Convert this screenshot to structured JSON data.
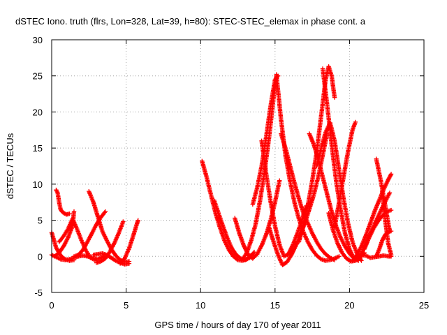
{
  "chart_data": {
    "type": "scatter",
    "title": "dSTEC Iono. truth (flrs, Lon=328, Lat=39, h=80): STEC-STEC_elemax in phase cont. a",
    "xlabel": "GPS time / hours of day 170 of year 2011",
    "ylabel": "dSTEC  / TECUs",
    "xlim": [
      0,
      25
    ],
    "ylim": [
      -5,
      30
    ],
    "xticks": [
      0,
      5,
      10,
      15,
      20,
      25
    ],
    "yticks": [
      -5,
      0,
      5,
      10,
      15,
      20,
      25,
      30
    ],
    "grid": true,
    "marker": "+",
    "color": "#ff0000",
    "series": [
      {
        "x": [
          0.0,
          0.3,
          0.6,
          0.9,
          1.2,
          1.5
        ],
        "y": [
          3.3,
          1.2,
          0.1,
          -0.4,
          -0.6,
          -0.5
        ]
      },
      {
        "x": [
          0.0,
          0.3,
          0.6,
          0.9,
          1.2,
          1.5,
          1.8,
          2.1,
          2.4,
          2.7,
          3.0
        ],
        "y": [
          0.2,
          -0.1,
          -0.4,
          -0.5,
          -0.4,
          -0.2,
          0.0,
          0.1,
          0.0,
          -0.2,
          -0.4
        ]
      },
      {
        "x": [
          0.3,
          0.4,
          0.5,
          0.6,
          0.7,
          0.8,
          1.0,
          1.2
        ],
        "y": [
          9.2,
          8.8,
          7.5,
          6.5,
          6.2,
          6.0,
          5.8,
          5.9
        ]
      },
      {
        "x": [
          0.5,
          0.8,
          1.1,
          1.4,
          1.7,
          2.0,
          2.3,
          2.6,
          2.9,
          3.2,
          3.5
        ],
        "y": [
          2.0,
          2.8,
          3.8,
          5.2,
          3.8,
          2.2,
          0.8,
          -0.2,
          -0.5,
          -0.3,
          0.0
        ]
      },
      {
        "x": [
          0.2,
          0.5,
          0.8,
          1.1,
          1.4,
          1.5
        ],
        "y": [
          0.0,
          0.5,
          1.4,
          2.6,
          4.2,
          6.2
        ]
      },
      {
        "x": [
          2.5,
          2.8,
          3.1,
          3.4,
          3.7,
          4.0,
          4.3,
          4.6,
          4.9,
          5.2
        ],
        "y": [
          9.0,
          7.5,
          5.5,
          3.5,
          2.2,
          1.0,
          0.1,
          -0.5,
          -0.8,
          -0.7
        ]
      },
      {
        "x": [
          1.5,
          1.8,
          2.1,
          2.4,
          2.7,
          3.0,
          3.3,
          3.6
        ],
        "y": [
          0.0,
          0.2,
          0.9,
          2.0,
          3.2,
          4.4,
          5.4,
          6.2
        ]
      },
      {
        "x": [
          2.8,
          3.1,
          3.4,
          3.7,
          4.0,
          4.3,
          4.6,
          4.9,
          5.2
        ],
        "y": [
          0.2,
          0.3,
          0.4,
          0.2,
          -0.2,
          -0.6,
          -0.9,
          -1.1,
          -1.0
        ]
      },
      {
        "x": [
          3.0,
          3.3,
          3.6,
          3.9,
          4.2,
          4.5,
          4.8
        ],
        "y": [
          -0.9,
          -0.7,
          -0.3,
          0.6,
          1.8,
          3.2,
          4.8
        ]
      },
      {
        "x": [
          4.6,
          4.9,
          5.2,
          5.5,
          5.8
        ],
        "y": [
          -1.0,
          -0.3,
          1.1,
          3.0,
          5.0
        ]
      },
      {
        "x": [
          10.1,
          10.4,
          10.7,
          11.0,
          11.3,
          11.6,
          11.9,
          12.2,
          12.5,
          12.8,
          13.1,
          13.4
        ],
        "y": [
          13.2,
          11.0,
          8.5,
          6.0,
          4.0,
          2.2,
          0.9,
          0.0,
          -0.5,
          -0.6,
          -0.4,
          0.2
        ]
      },
      {
        "x": [
          10.9,
          11.2,
          11.5,
          11.8,
          12.1,
          12.4,
          12.7,
          13.0,
          13.3,
          13.6
        ],
        "y": [
          7.8,
          6.0,
          4.2,
          2.5,
          1.1,
          0.2,
          -0.3,
          -0.5,
          -0.2,
          0.6
        ]
      },
      {
        "x": [
          12.3,
          12.6,
          12.9,
          13.2,
          13.5,
          13.8,
          14.1,
          14.4,
          14.7,
          15.0,
          15.3
        ],
        "y": [
          5.3,
          3.2,
          1.5,
          0.2,
          -0.3,
          0.3,
          1.5,
          3.0,
          5.0,
          7.5,
          10.5
        ]
      },
      {
        "x": [
          13.5,
          13.8,
          14.1,
          14.4,
          14.7,
          15.0,
          15.2
        ],
        "y": [
          7.2,
          9.5,
          12.5,
          16.5,
          20.8,
          24.5,
          25.0
        ]
      },
      {
        "x": [
          12.8,
          13.1,
          13.4,
          13.7,
          14.0,
          14.3,
          14.6,
          14.9,
          15.1
        ],
        "y": [
          -0.5,
          0.5,
          2.2,
          4.5,
          7.8,
          11.8,
          16.5,
          22.0,
          25.2
        ]
      },
      {
        "x": [
          15.1,
          15.4,
          15.7,
          16.0,
          16.3,
          16.6,
          16.9,
          17.2,
          17.5,
          17.8,
          18.1,
          18.4,
          18.7,
          19.0,
          19.3
        ],
        "y": [
          25.0,
          19.0,
          14.0,
          10.5,
          7.5,
          5.2,
          3.4,
          2.0,
          0.9,
          0.1,
          -0.4,
          -0.6,
          -0.5,
          -0.3,
          0.0
        ]
      },
      {
        "x": [
          14.1,
          14.4,
          14.7,
          15.0,
          15.3,
          15.6,
          15.9,
          16.2,
          16.5,
          16.8,
          17.1
        ],
        "y": [
          16.0,
          11.5,
          7.6,
          4.2,
          1.6,
          0.0,
          0.3,
          1.6,
          3.2,
          5.0,
          7.0
        ]
      },
      {
        "x": [
          14.6,
          14.9,
          15.2,
          15.5,
          15.8,
          16.1,
          16.4,
          16.7,
          17.0,
          17.3,
          17.6,
          17.9,
          18.2,
          18.5
        ],
        "y": [
          4.0,
          2.0,
          0.2,
          -1.2,
          -0.8,
          0.2,
          1.5,
          3.0,
          4.6,
          6.5,
          8.5,
          11.0,
          14.0,
          17.0
        ]
      },
      {
        "x": [
          15.4,
          15.7,
          16.0,
          16.3,
          16.6,
          16.9,
          17.2,
          17.5,
          17.8,
          18.1,
          18.4,
          18.7,
          19.0
        ],
        "y": [
          17.0,
          15.0,
          12.6,
          10.2,
          8.0,
          6.0,
          4.6,
          3.2,
          2.0,
          1.0,
          0.3,
          -0.2,
          -0.5
        ]
      },
      {
        "x": [
          16.6,
          16.9,
          17.2,
          17.5,
          17.8,
          18.1,
          18.4,
          18.6,
          18.8,
          19.0
        ],
        "y": [
          2.0,
          4.2,
          7.0,
          10.5,
          14.5,
          19.5,
          24.5,
          26.3,
          25.0,
          22.0
        ]
      },
      {
        "x": [
          18.2,
          18.5,
          18.8,
          19.1,
          19.4,
          19.7,
          20.0,
          20.3
        ],
        "y": [
          26.0,
          21.0,
          15.5,
          10.5,
          6.5,
          3.2,
          1.0,
          -0.3
        ]
      },
      {
        "x": [
          17.3,
          17.6,
          17.9,
          18.2,
          18.5,
          18.8,
          19.1,
          19.4,
          19.7,
          20.0,
          20.3,
          20.6
        ],
        "y": [
          17.0,
          15.5,
          13.5,
          11.0,
          8.6,
          6.2,
          4.2,
          2.6,
          1.4,
          0.4,
          -0.3,
          -0.6
        ]
      },
      {
        "x": [
          17.8,
          18.1,
          18.4,
          18.7,
          19.0,
          19.3,
          19.6,
          19.9,
          20.2,
          20.5,
          20.8
        ],
        "y": [
          12.5,
          15.0,
          17.2,
          18.5,
          16.0,
          12.0,
          8.0,
          4.6,
          2.0,
          0.4,
          -0.6
        ]
      },
      {
        "x": [
          18.6,
          18.9,
          19.2,
          19.5,
          19.8,
          20.1,
          20.4,
          20.7,
          21.0
        ],
        "y": [
          6.0,
          3.6,
          1.8,
          0.5,
          -0.3,
          -0.7,
          -0.6,
          -0.2,
          0.5
        ]
      },
      {
        "x": [
          19.0,
          19.3,
          19.6,
          19.9,
          20.2,
          20.4
        ],
        "y": [
          4.0,
          7.5,
          11.0,
          14.5,
          17.5,
          18.6
        ]
      },
      {
        "x": [
          20.2,
          20.5,
          20.8,
          21.1,
          21.4,
          21.7,
          22.0,
          22.3,
          22.6,
          22.8
        ],
        "y": [
          -0.6,
          0.2,
          1.4,
          2.9,
          4.6,
          6.3,
          7.8,
          9.3,
          10.6,
          11.4
        ]
      },
      {
        "x": [
          20.6,
          20.9,
          21.2,
          21.5,
          21.8,
          22.1,
          22.4,
          22.7
        ],
        "y": [
          -0.2,
          0.8,
          2.2,
          3.6,
          5.0,
          6.3,
          7.6,
          8.8
        ]
      },
      {
        "x": [
          21.8,
          22.1,
          22.4,
          22.7
        ],
        "y": [
          13.5,
          10.5,
          7.0,
          3.5
        ]
      },
      {
        "x": [
          21.0,
          21.3,
          21.6,
          21.9,
          22.2,
          22.5,
          22.8
        ],
        "y": [
          1.0,
          2.5,
          3.8,
          4.8,
          5.6,
          6.2,
          6.4
        ]
      },
      {
        "x": [
          21.8,
          22.0,
          22.2,
          22.4,
          22.6,
          22.8
        ],
        "y": [
          0.0,
          1.0,
          2.2,
          3.0,
          3.4,
          3.5
        ]
      },
      {
        "x": [
          20.5,
          20.8,
          21.1,
          21.4,
          21.7,
          22.0,
          22.3,
          22.6,
          22.8
        ],
        "y": [
          0.0,
          0.2,
          0.1,
          -0.2,
          -0.1,
          0.0,
          0.1,
          0.0,
          0.0
        ]
      },
      {
        "x": [
          22.2,
          22.4,
          22.6,
          22.8
        ],
        "y": [
          9.0,
          5.0,
          1.8,
          0.2
        ]
      }
    ]
  }
}
